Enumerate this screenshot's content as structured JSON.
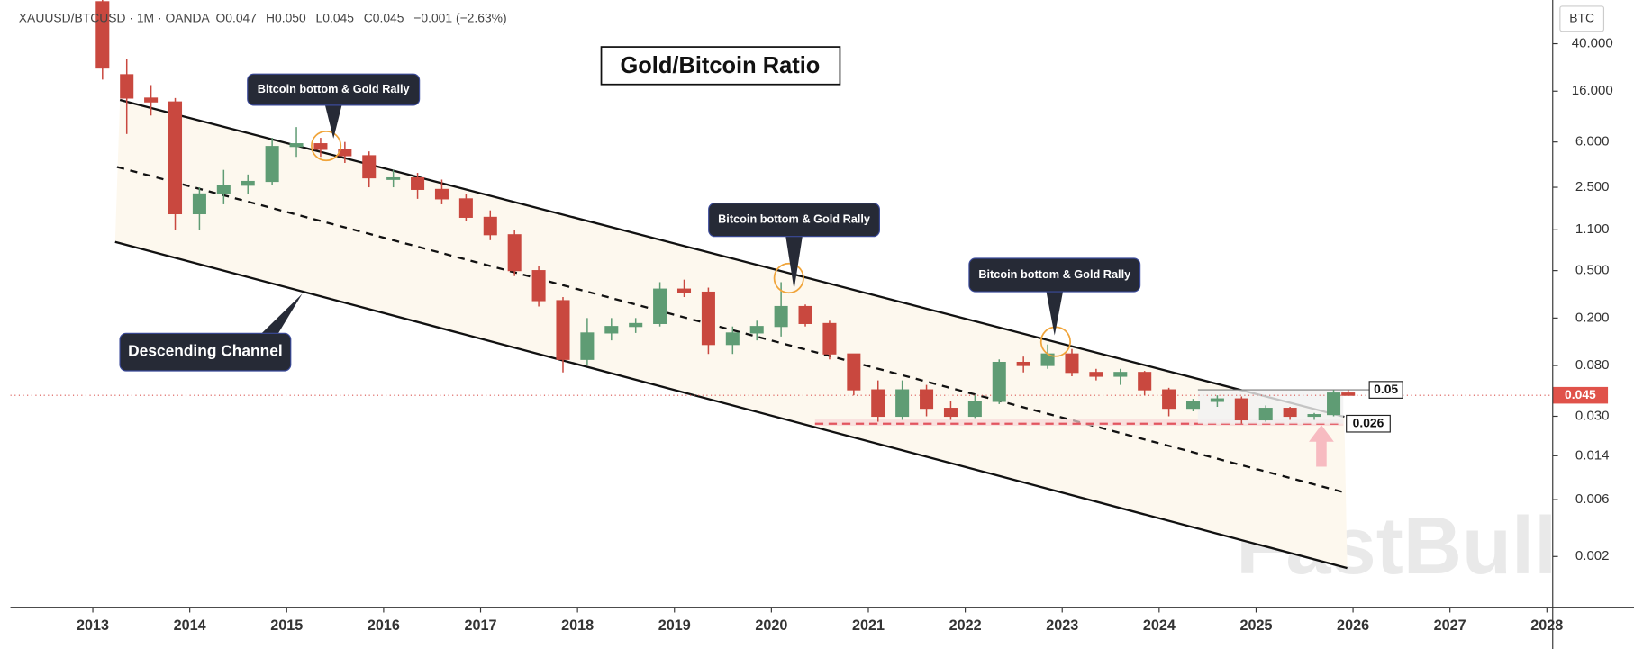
{
  "header": {
    "symbol": "XAUUSD/BTCUSD · 1M · OANDA",
    "open": "O0.047",
    "high": "H0.050",
    "low": "L0.045",
    "close": "C0.045",
    "change": "−0.001 (−2.63%)"
  },
  "chart_data": {
    "type": "candlestick",
    "title": "Gold/Bitcoin Ratio",
    "y_axis_label": "BTC",
    "annotations": [
      "Bitcoin bottom & Gold Rally",
      "Bitcoin bottom & Gold Rally",
      "Bitcoin bottom & Gold Rally",
      "Descending Channel"
    ],
    "log_scale": true,
    "up_color": "#5f9c74",
    "down_color": "#c9483f",
    "x": [
      2013.1,
      2013.35,
      2013.6,
      2013.85,
      2014.1,
      2014.35,
      2014.6,
      2014.85,
      2015.1,
      2015.35,
      2015.6,
      2015.85,
      2016.1,
      2016.35,
      2016.6,
      2016.85,
      2017.1,
      2017.35,
      2017.6,
      2017.85,
      2018.1,
      2018.35,
      2018.6,
      2018.85,
      2019.1,
      2019.35,
      2019.6,
      2019.85,
      2020.1,
      2020.35,
      2020.6,
      2020.85,
      2021.1,
      2021.35,
      2021.6,
      2021.85,
      2022.1,
      2022.35,
      2022.6,
      2022.85,
      2023.1,
      2023.35,
      2023.6,
      2023.85,
      2024.1,
      2024.35,
      2024.6,
      2024.85,
      2025.1,
      2025.35,
      2025.6,
      2025.8,
      2025.95
    ],
    "open": [
      90,
      22,
      14,
      13,
      1.5,
      2.2,
      2.6,
      2.8,
      5.5,
      5.8,
      5.2,
      4.6,
      3.0,
      3.0,
      2.4,
      2.0,
      1.4,
      1.0,
      0.5,
      0.28,
      0.09,
      0.15,
      0.17,
      0.18,
      0.35,
      0.33,
      0.12,
      0.15,
      0.17,
      0.25,
      0.18,
      0.1,
      0.05,
      0.03,
      0.05,
      0.035,
      0.03,
      0.04,
      0.085,
      0.08,
      0.1,
      0.07,
      0.065,
      0.07,
      0.05,
      0.035,
      0.04,
      0.042,
      0.028,
      0.035,
      0.03,
      0.031,
      0.047
    ],
    "high": [
      93,
      30,
      18,
      14,
      2.5,
      3.5,
      3.2,
      6.5,
      8,
      6.5,
      6,
      5,
      3.5,
      3.3,
      2.9,
      2.2,
      1.6,
      1.1,
      0.55,
      0.3,
      0.2,
      0.2,
      0.2,
      0.4,
      0.42,
      0.36,
      0.17,
      0.19,
      0.4,
      0.26,
      0.19,
      0.1,
      0.06,
      0.06,
      0.055,
      0.04,
      0.045,
      0.09,
      0.095,
      0.12,
      0.11,
      0.075,
      0.075,
      0.072,
      0.052,
      0.042,
      0.045,
      0.044,
      0.037,
      0.036,
      0.032,
      0.05,
      0.05
    ],
    "low": [
      20,
      7,
      10,
      1.1,
      1.1,
      1.8,
      2.2,
      2.6,
      4.5,
      4.5,
      4,
      2.5,
      2.5,
      2.0,
      1.8,
      1.3,
      0.9,
      0.45,
      0.25,
      0.07,
      0.08,
      0.13,
      0.15,
      0.17,
      0.3,
      0.1,
      0.1,
      0.13,
      0.14,
      0.17,
      0.09,
      0.045,
      0.027,
      0.028,
      0.03,
      0.028,
      0.029,
      0.038,
      0.07,
      0.075,
      0.065,
      0.06,
      0.055,
      0.045,
      0.03,
      0.033,
      0.036,
      0.026,
      0.027,
      0.028,
      0.028,
      0.03,
      0.045
    ],
    "close": [
      25,
      14,
      13,
      1.5,
      2.2,
      2.6,
      2.8,
      5.5,
      5.8,
      5.2,
      4.6,
      3.0,
      3.0,
      2.4,
      2.0,
      1.4,
      1.0,
      0.5,
      0.28,
      0.09,
      0.15,
      0.17,
      0.18,
      0.35,
      0.33,
      0.12,
      0.15,
      0.17,
      0.25,
      0.18,
      0.1,
      0.05,
      0.03,
      0.05,
      0.035,
      0.03,
      0.04,
      0.085,
      0.08,
      0.1,
      0.07,
      0.065,
      0.07,
      0.05,
      0.035,
      0.04,
      0.042,
      0.028,
      0.035,
      0.03,
      0.031,
      0.047,
      0.045
    ],
    "channel_upper": {
      "x": [
        2013.28,
        2025.91
      ],
      "values": [
        13.5,
        0.0297
      ]
    },
    "channel_middle": {
      "x": [
        2013.25,
        2025.94
      ],
      "values": [
        3.7,
        0.0068
      ]
    },
    "channel_lower": {
      "x": [
        2013.23,
        2025.94
      ],
      "values": [
        0.87,
        0.0016
      ]
    },
    "support": {
      "x": [
        2020.45,
        2025.9
      ],
      "value": 0.026
    },
    "resistance": {
      "x": [
        2024.4,
        2025.9
      ],
      "value": 0.05
    },
    "last_price": 0.045,
    "xlim": [
      2012.15,
      2028.06
    ],
    "ylim": [
      0.00075,
      93
    ],
    "xticks": [
      2013,
      2014,
      2015,
      2016,
      2017,
      2018,
      2019,
      2020,
      2021,
      2022,
      2023,
      2024,
      2025,
      2026,
      2027,
      2028
    ],
    "yticks": [
      {
        "value": 40,
        "label": "40.000"
      },
      {
        "value": 16,
        "label": "16.000"
      },
      {
        "value": 6,
        "label": "6.000"
      },
      {
        "value": 2.5,
        "label": "2.500"
      },
      {
        "value": 1.1,
        "label": "1.100"
      },
      {
        "value": 0.5,
        "label": "0.500"
      },
      {
        "value": 0.2,
        "label": "0.200"
      },
      {
        "value": 0.08,
        "label": "0.080"
      },
      {
        "value": 0.03,
        "label": "0.030"
      },
      {
        "value": 0.014,
        "label": "0.014"
      },
      {
        "value": 0.006,
        "label": "0.006"
      },
      {
        "value": 0.002,
        "label": "0.002"
      }
    ]
  }
}
